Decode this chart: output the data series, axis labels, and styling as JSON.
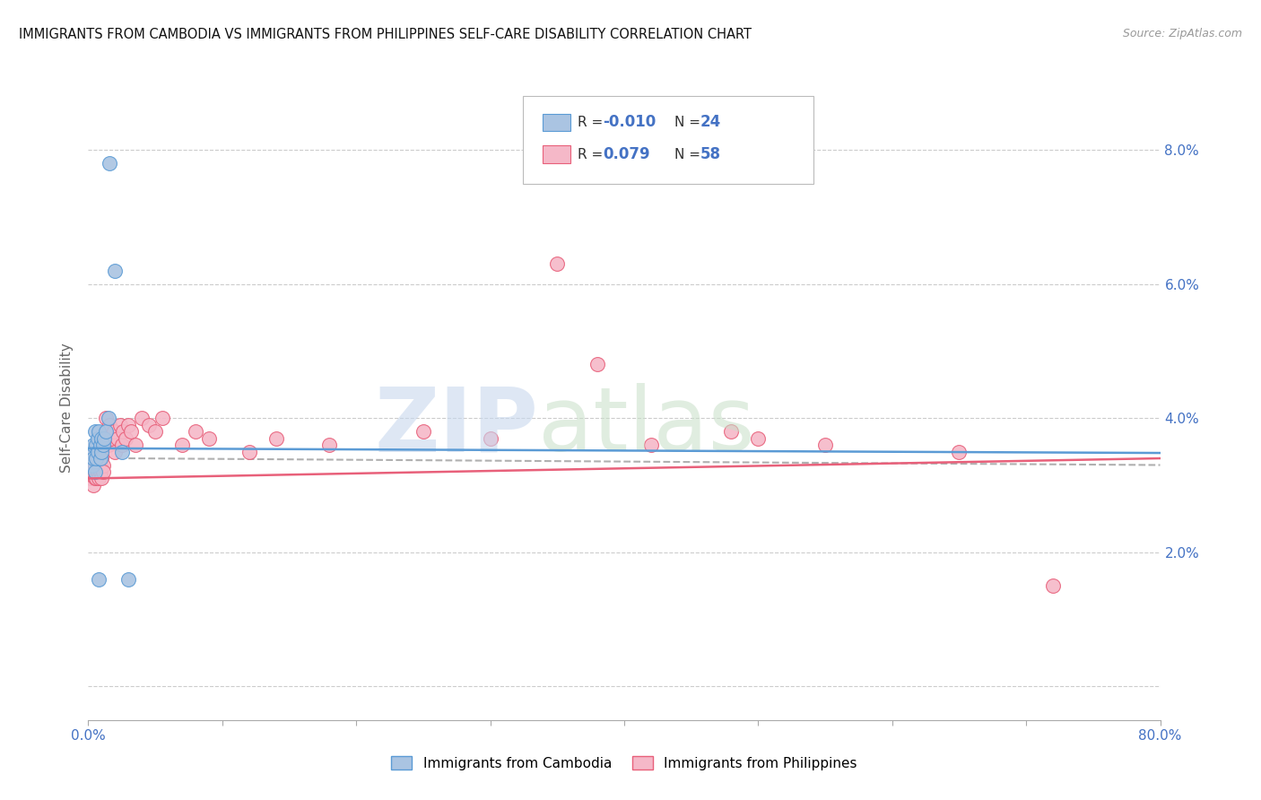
{
  "title": "IMMIGRANTS FROM CAMBODIA VS IMMIGRANTS FROM PHILIPPINES SELF-CARE DISABILITY CORRELATION CHART",
  "source": "Source: ZipAtlas.com",
  "ylabel": "Self-Care Disability",
  "ytick_positions": [
    0.0,
    0.02,
    0.04,
    0.06,
    0.08
  ],
  "ytick_labels": [
    "",
    "2.0%",
    "4.0%",
    "6.0%",
    "8.0%"
  ],
  "xtick_positions": [
    0.0,
    0.1,
    0.2,
    0.3,
    0.4,
    0.5,
    0.6,
    0.7,
    0.8
  ],
  "xtick_labels": [
    "0.0%",
    "",
    "",
    "",
    "",
    "",
    "",
    "",
    "80.0%"
  ],
  "xlim": [
    0.0,
    0.8
  ],
  "ylim": [
    -0.005,
    0.088
  ],
  "legend_label1": "Immigrants from Cambodia",
  "legend_label2": "Immigrants from Philippines",
  "color_cambodia_fill": "#aac4e2",
  "color_cambodia_edge": "#5b9bd5",
  "color_philippines_fill": "#f5b8c8",
  "color_philippines_edge": "#e8607a",
  "color_line_cambodia": "#5b9bd5",
  "color_line_philippines": "#e8607a",
  "color_dashed": "#b0b0b0",
  "color_tick_label": "#4472c4",
  "color_ylabel": "#666666",
  "legend_R1_prefix": "R = ",
  "legend_R1_value": "-0.010",
  "legend_N1_prefix": "N = ",
  "legend_N1_value": "24",
  "legend_R2_prefix": "R =  ",
  "legend_R2_value": "0.079",
  "legend_N2_prefix": "N = ",
  "legend_N2_value": "58",
  "cam_x": [
    0.002,
    0.003,
    0.004,
    0.004,
    0.005,
    0.005,
    0.006,
    0.006,
    0.007,
    0.007,
    0.008,
    0.008,
    0.009,
    0.009,
    0.01,
    0.01,
    0.011,
    0.012,
    0.013,
    0.015,
    0.016,
    0.02,
    0.025,
    0.03
  ],
  "cam_y": [
    0.035,
    0.033,
    0.036,
    0.034,
    0.038,
    0.032,
    0.036,
    0.034,
    0.037,
    0.035,
    0.038,
    0.016,
    0.036,
    0.034,
    0.037,
    0.035,
    0.036,
    0.037,
    0.038,
    0.04,
    0.078,
    0.062,
    0.035,
    0.016
  ],
  "phi_x": [
    0.002,
    0.003,
    0.003,
    0.004,
    0.004,
    0.005,
    0.005,
    0.005,
    0.006,
    0.006,
    0.007,
    0.007,
    0.008,
    0.008,
    0.009,
    0.009,
    0.01,
    0.01,
    0.011,
    0.011,
    0.012,
    0.012,
    0.013,
    0.014,
    0.015,
    0.015,
    0.016,
    0.018,
    0.019,
    0.02,
    0.022,
    0.024,
    0.025,
    0.026,
    0.028,
    0.03,
    0.032,
    0.035,
    0.04,
    0.045,
    0.05,
    0.055,
    0.07,
    0.08,
    0.09,
    0.12,
    0.14,
    0.18,
    0.25,
    0.3,
    0.35,
    0.38,
    0.42,
    0.48,
    0.5,
    0.55,
    0.65,
    0.72
  ],
  "phi_y": [
    0.031,
    0.033,
    0.032,
    0.034,
    0.03,
    0.031,
    0.033,
    0.032,
    0.034,
    0.031,
    0.033,
    0.032,
    0.034,
    0.031,
    0.033,
    0.032,
    0.034,
    0.031,
    0.033,
    0.032,
    0.038,
    0.036,
    0.04,
    0.037,
    0.038,
    0.036,
    0.039,
    0.037,
    0.038,
    0.035,
    0.037,
    0.039,
    0.036,
    0.038,
    0.037,
    0.039,
    0.038,
    0.036,
    0.04,
    0.039,
    0.038,
    0.04,
    0.036,
    0.038,
    0.037,
    0.035,
    0.037,
    0.036,
    0.038,
    0.037,
    0.063,
    0.048,
    0.036,
    0.038,
    0.037,
    0.036,
    0.035,
    0.015
  ],
  "cam_line_x": [
    0.0,
    0.8
  ],
  "cam_line_y": [
    0.0355,
    0.0348
  ],
  "phi_line_x": [
    0.0,
    0.8
  ],
  "phi_line_y": [
    0.031,
    0.034
  ],
  "dash_line_x": [
    0.03,
    0.8
  ],
  "dash_line_y": [
    0.034,
    0.033
  ],
  "watermark_zip": "ZIP",
  "watermark_atlas": "atlas"
}
